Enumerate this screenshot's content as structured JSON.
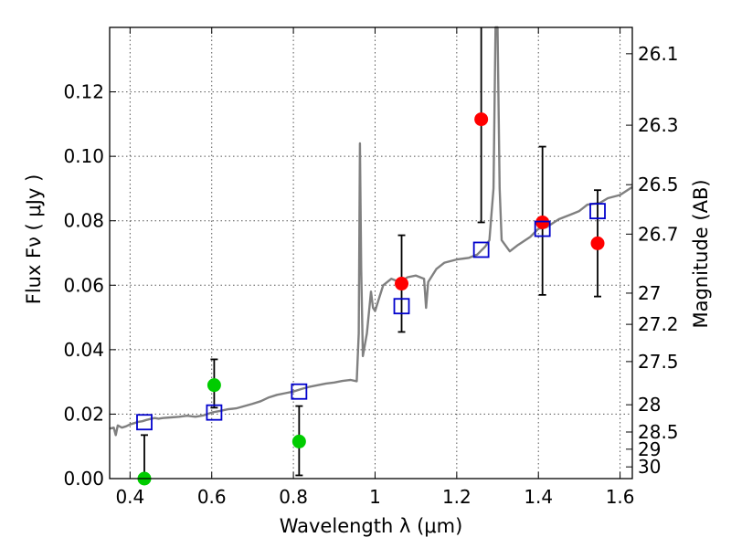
{
  "chart_data": {
    "type": "scatter",
    "xlabel": "Wavelength  λ (μm)",
    "ylabel": "Flux  Fν ( μJy )",
    "ylabel_right": "Magnitude (AB)",
    "xlim": [
      0.35,
      1.63
    ],
    "ylim": [
      0.0,
      0.14
    ],
    "grid": true,
    "x_ticks": [
      0.4,
      0.6,
      0.8,
      1.0,
      1.2,
      1.4,
      1.6
    ],
    "x_tick_labels": [
      "0.4",
      "0.6",
      "0.8",
      "1",
      "1.2",
      "1.4",
      "1.6"
    ],
    "y_ticks": [
      0.0,
      0.02,
      0.04,
      0.06,
      0.08,
      0.1,
      0.12
    ],
    "y_tick_labels": [
      "0.00",
      "0.02",
      "0.04",
      "0.06",
      "0.08",
      "0.10",
      "0.12"
    ],
    "right_ticks": [
      {
        "label": "26.1",
        "mag": 26.1
      },
      {
        "label": "26.3",
        "mag": 26.3
      },
      {
        "label": "26.5",
        "mag": 26.5
      },
      {
        "label": "26.7",
        "mag": 26.7
      },
      {
        "label": "27",
        "mag": 27.0
      },
      {
        "label": "27.2",
        "mag": 27.2
      },
      {
        "label": "27.5",
        "mag": 27.5
      },
      {
        "label": "28",
        "mag": 28.0
      },
      {
        "label": "28.5",
        "mag": 28.5
      },
      {
        "label": "29",
        "mag": 29.0
      },
      {
        "label": "30",
        "mag": 30.0
      }
    ],
    "series": [
      {
        "marker": "circle",
        "color": "#00cc00",
        "points": [
          {
            "x": 0.435,
            "y": 0.0,
            "yerr_low": 0.0,
            "yerr_high": 0.0135
          },
          {
            "x": 0.606,
            "y": 0.029,
            "yerr_low": 0.022,
            "yerr_high": 0.037
          },
          {
            "x": 0.814,
            "y": 0.0115,
            "yerr_low": 0.001,
            "yerr_high": 0.0225
          }
        ]
      },
      {
        "marker": "circle",
        "color": "#ff0000",
        "points": [
          {
            "x": 1.065,
            "y": 0.0605,
            "yerr_low": 0.0455,
            "yerr_high": 0.0755
          },
          {
            "x": 1.26,
            "y": 0.1115,
            "yerr_low": 0.0795,
            "yerr_high": 0.145
          },
          {
            "x": 1.41,
            "y": 0.0795,
            "yerr_low": 0.057,
            "yerr_high": 0.103
          },
          {
            "x": 1.545,
            "y": 0.073,
            "yerr_low": 0.0565,
            "yerr_high": 0.0895
          }
        ]
      },
      {
        "marker": "square-open",
        "color": "#0000cc",
        "points": [
          {
            "x": 0.435,
            "y": 0.0175
          },
          {
            "x": 0.606,
            "y": 0.0205
          },
          {
            "x": 0.814,
            "y": 0.027
          },
          {
            "x": 1.065,
            "y": 0.0535
          },
          {
            "x": 1.26,
            "y": 0.071
          },
          {
            "x": 1.41,
            "y": 0.0775
          },
          {
            "x": 1.545,
            "y": 0.083
          }
        ]
      },
      {
        "type": "line",
        "color": "#808080",
        "points": [
          [
            0.35,
            0.0155
          ],
          [
            0.36,
            0.0158
          ],
          [
            0.365,
            0.0135
          ],
          [
            0.37,
            0.0165
          ],
          [
            0.38,
            0.0158
          ],
          [
            0.39,
            0.0162
          ],
          [
            0.4,
            0.0168
          ],
          [
            0.41,
            0.0172
          ],
          [
            0.42,
            0.0176
          ],
          [
            0.43,
            0.0178
          ],
          [
            0.44,
            0.0182
          ],
          [
            0.45,
            0.0185
          ],
          [
            0.46,
            0.0188
          ],
          [
            0.47,
            0.0186
          ],
          [
            0.48,
            0.0188
          ],
          [
            0.5,
            0.019
          ],
          [
            0.52,
            0.0192
          ],
          [
            0.54,
            0.0195
          ],
          [
            0.56,
            0.0192
          ],
          [
            0.58,
            0.0196
          ],
          [
            0.6,
            0.0205
          ],
          [
            0.62,
            0.021
          ],
          [
            0.64,
            0.0215
          ],
          [
            0.66,
            0.0218
          ],
          [
            0.68,
            0.0225
          ],
          [
            0.7,
            0.0232
          ],
          [
            0.72,
            0.024
          ],
          [
            0.74,
            0.0252
          ],
          [
            0.76,
            0.026
          ],
          [
            0.78,
            0.0265
          ],
          [
            0.8,
            0.027
          ],
          [
            0.82,
            0.0278
          ],
          [
            0.84,
            0.0285
          ],
          [
            0.86,
            0.029
          ],
          [
            0.88,
            0.0295
          ],
          [
            0.9,
            0.0298
          ],
          [
            0.92,
            0.0303
          ],
          [
            0.94,
            0.0306
          ],
          [
            0.955,
            0.0302
          ],
          [
            0.96,
            0.045
          ],
          [
            0.963,
            0.104
          ],
          [
            0.966,
            0.065
          ],
          [
            0.97,
            0.038
          ],
          [
            0.98,
            0.045
          ],
          [
            0.99,
            0.058
          ],
          [
            0.995,
            0.053
          ],
          [
            1.0,
            0.052
          ],
          [
            1.01,
            0.056
          ],
          [
            1.02,
            0.06
          ],
          [
            1.04,
            0.062
          ],
          [
            1.06,
            0.061
          ],
          [
            1.08,
            0.0625
          ],
          [
            1.1,
            0.063
          ],
          [
            1.12,
            0.062
          ],
          [
            1.125,
            0.053
          ],
          [
            1.13,
            0.061
          ],
          [
            1.15,
            0.065
          ],
          [
            1.17,
            0.067
          ],
          [
            1.2,
            0.068
          ],
          [
            1.23,
            0.0685
          ],
          [
            1.25,
            0.0695
          ],
          [
            1.27,
            0.072
          ],
          [
            1.28,
            0.074
          ],
          [
            1.29,
            0.09
          ],
          [
            1.295,
            0.14
          ],
          [
            1.3,
            0.14
          ],
          [
            1.305,
            0.09
          ],
          [
            1.31,
            0.074
          ],
          [
            1.33,
            0.0705
          ],
          [
            1.35,
            0.0725
          ],
          [
            1.38,
            0.075
          ],
          [
            1.4,
            0.0775
          ],
          [
            1.42,
            0.078
          ],
          [
            1.45,
            0.0805
          ],
          [
            1.48,
            0.082
          ],
          [
            1.5,
            0.083
          ],
          [
            1.52,
            0.085
          ],
          [
            1.55,
            0.0855
          ],
          [
            1.57,
            0.087
          ],
          [
            1.6,
            0.088
          ],
          [
            1.63,
            0.0905
          ]
        ]
      }
    ]
  }
}
